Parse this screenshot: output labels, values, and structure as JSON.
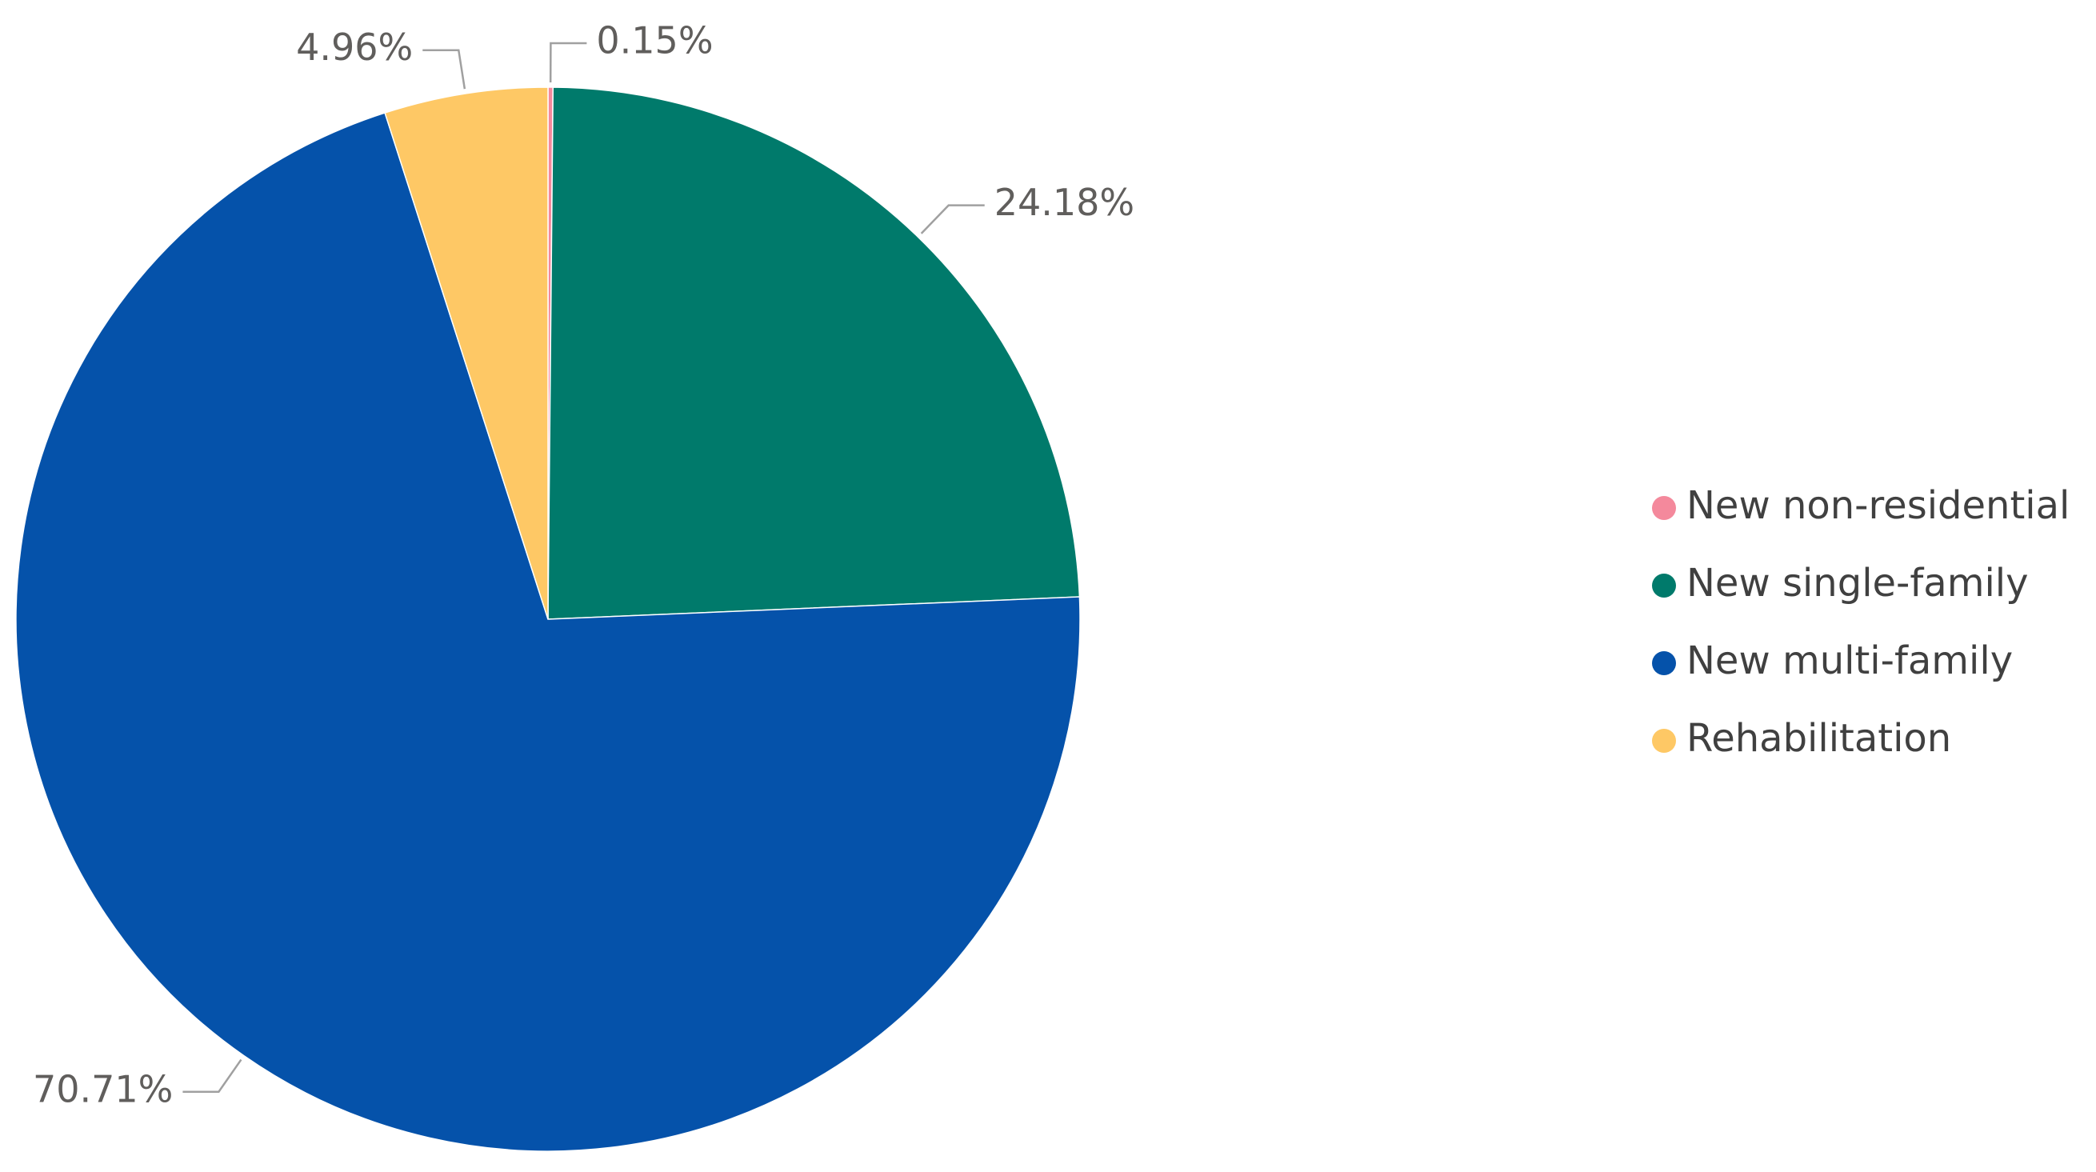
{
  "chart_data": {
    "type": "pie",
    "categories": [
      "New non-residential",
      "New single-family",
      "New multi-family",
      "Rehabilitation"
    ],
    "values": [
      0.15,
      24.18,
      70.71,
      4.96
    ],
    "value_labels": [
      "0.15%",
      "24.18%",
      "70.71%",
      "4.96%"
    ],
    "colors": [
      "#f4899c",
      "#007a6b",
      "#0552aa",
      "#fec865"
    ],
    "legend": "right"
  }
}
